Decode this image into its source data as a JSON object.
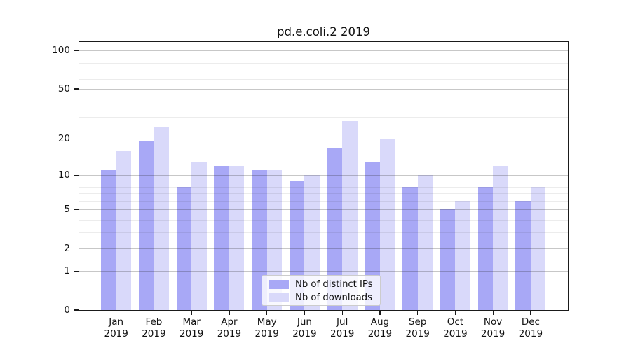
{
  "chart_data": {
    "type": "bar",
    "title": "pd.e.coli.2 2019",
    "y_scale": "log(1+y)",
    "categories": [
      "Jan 2019",
      "Feb 2019",
      "Mar 2019",
      "Apr 2019",
      "May 2019",
      "Jun 2019",
      "Jul 2019",
      "Aug 2019",
      "Sep 2019",
      "Oct 2019",
      "Nov 2019",
      "Dec 2019"
    ],
    "month_labels": [
      "Jan",
      "Feb",
      "Mar",
      "Apr",
      "May",
      "Jun",
      "Jul",
      "Aug",
      "Sep",
      "Oct",
      "Nov",
      "Dec"
    ],
    "year_label": "2019",
    "series": [
      {
        "name": "Nb of distinct IPs",
        "color": "#a8a8f6",
        "values": [
          11,
          19,
          8,
          12,
          11,
          9,
          17,
          13,
          8,
          5,
          8,
          6
        ]
      },
      {
        "name": "Nb of downloads",
        "color": "#d9d9fa",
        "values": [
          16,
          25,
          13,
          12,
          11,
          10,
          28,
          20,
          10,
          6,
          12,
          8
        ]
      }
    ],
    "yticks": [
      0,
      1,
      2,
      5,
      10,
      20,
      50,
      100
    ],
    "yticks_minor": [
      3,
      4,
      6,
      7,
      8,
      9,
      30,
      40,
      60,
      70,
      80,
      90
    ],
    "ylim": [
      0,
      116
    ],
    "grid": true,
    "legend_position": "lower center"
  },
  "colors": {
    "spine": "#1a1a1a",
    "background": "#ffffff",
    "grid_major": "#cfcfcf",
    "grid_minor": "#e9e9e9"
  }
}
